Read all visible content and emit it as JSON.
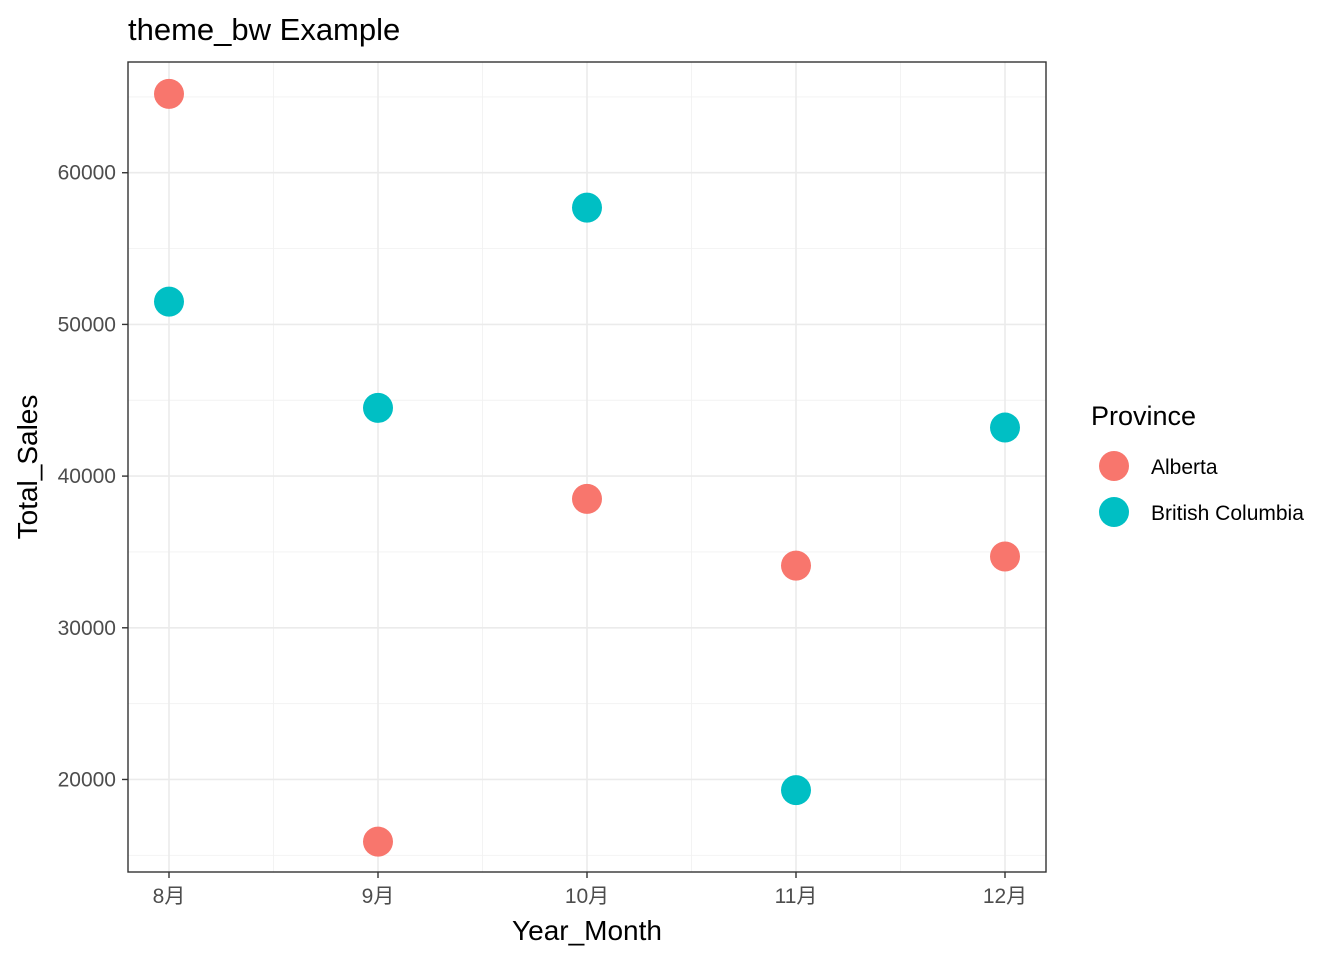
{
  "chart_data": {
    "type": "scatter",
    "title": "theme_bw Example",
    "xlabel": "Year_Month",
    "ylabel": "Total_Sales",
    "categories": [
      "8月",
      "9月",
      "10月",
      "11月",
      "12月"
    ],
    "y_ticks": [
      20000,
      30000,
      40000,
      50000,
      60000
    ],
    "y_tick_labels": [
      "20000",
      "30000",
      "40000",
      "50000",
      "60000"
    ],
    "ylim": [
      13900,
      67300
    ],
    "grid": true,
    "legend": {
      "title": "Province",
      "placement": "right"
    },
    "series": [
      {
        "name": "Alberta",
        "color": "#F8766D",
        "values": [
          65200,
          15900,
          38500,
          34100,
          34700
        ]
      },
      {
        "name": "British Columbia",
        "color": "#00BFC4",
        "values": [
          51500,
          44500,
          57700,
          19300,
          43200
        ]
      }
    ]
  }
}
